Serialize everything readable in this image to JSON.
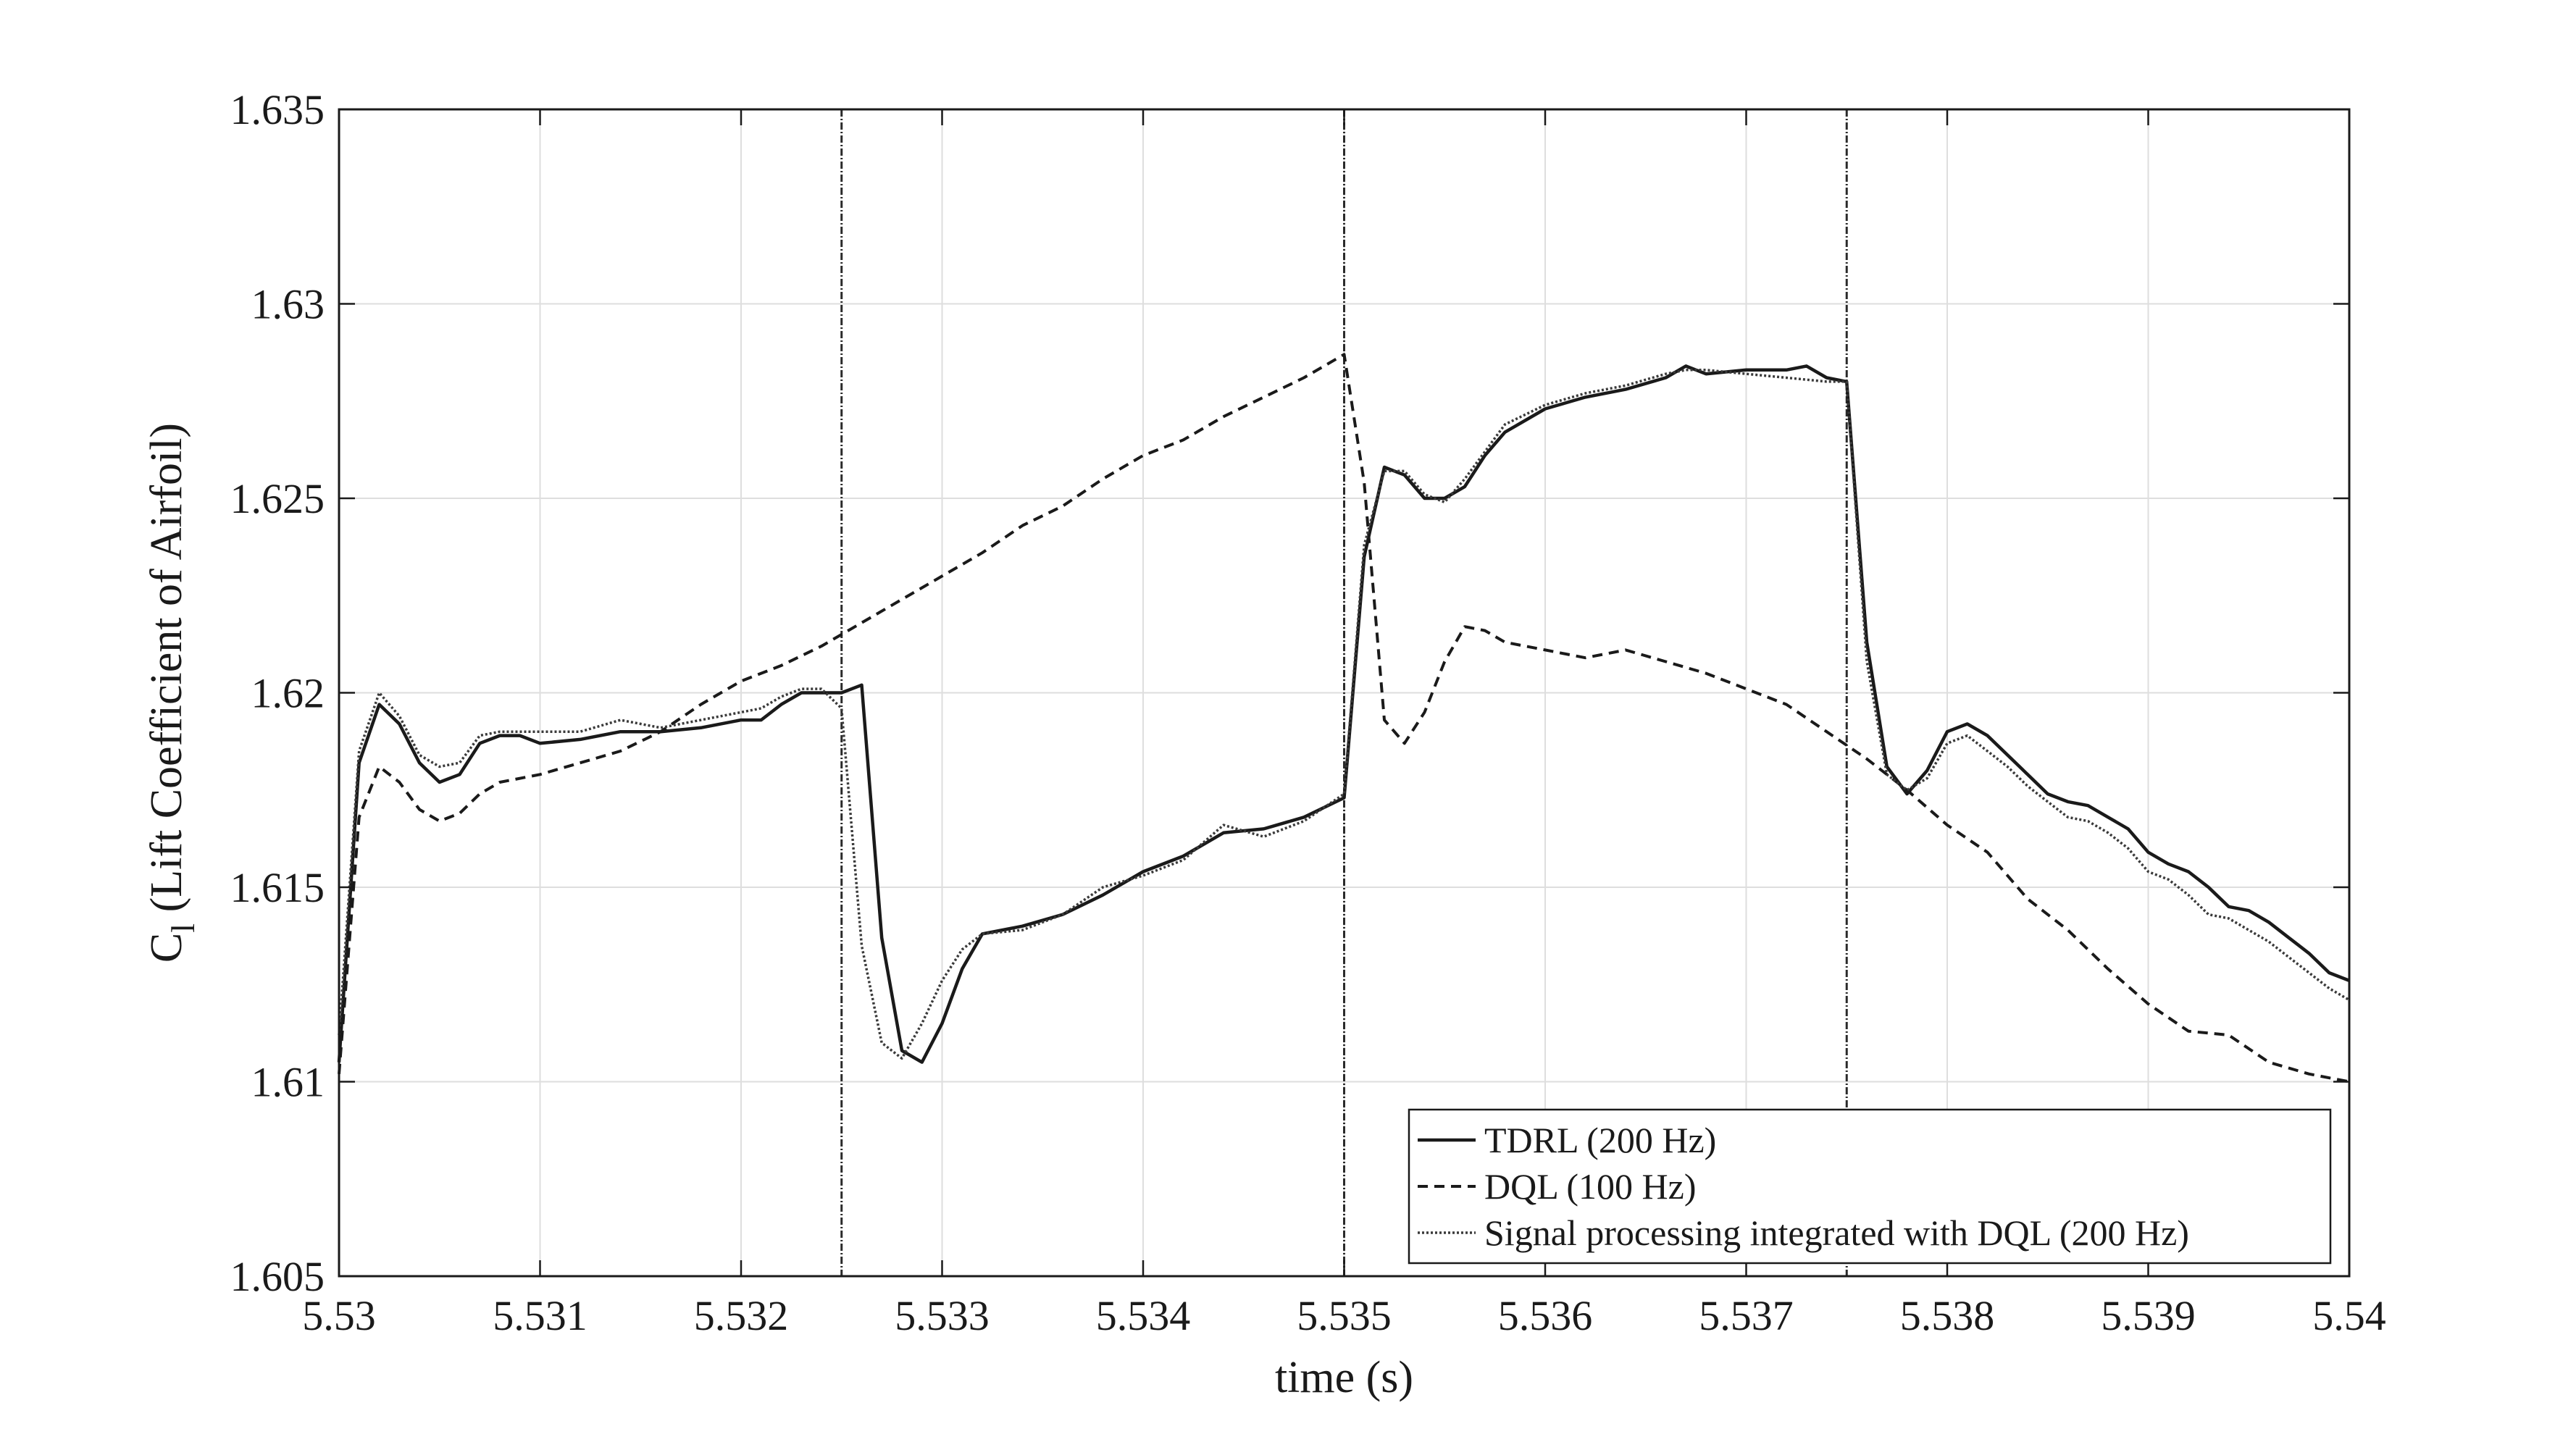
{
  "chart_data": {
    "type": "line",
    "title": "",
    "xlabel": "time (s)",
    "ylabel_main": "C",
    "ylabel_sub": "l",
    "ylabel_rest": " (Lift Coefficient of Airfoil)",
    "xlim": [
      5.53,
      5.54
    ],
    "ylim": [
      1.605,
      1.635
    ],
    "xticks": [
      5.53,
      5.531,
      5.532,
      5.533,
      5.534,
      5.535,
      5.536,
      5.537,
      5.538,
      5.539,
      5.54
    ],
    "xtick_labels": [
      "5.53",
      "5.531",
      "5.532",
      "5.533",
      "5.534",
      "5.535",
      "5.536",
      "5.537",
      "5.538",
      "5.539",
      "5.54"
    ],
    "yticks": [
      1.605,
      1.61,
      1.615,
      1.62,
      1.625,
      1.63,
      1.635
    ],
    "ytick_labels": [
      "1.605",
      "1.61",
      "1.615",
      "1.62",
      "1.625",
      "1.63",
      "1.635"
    ],
    "grid": true,
    "legend_position": "bottom-right",
    "vlines": [
      5.5325,
      5.535,
      5.5375
    ],
    "series": [
      {
        "name": "TDRL (200 Hz)",
        "style": "solid",
        "color": "#1a1a1a",
        "points": [
          [
            5.53,
            1.6105
          ],
          [
            5.5301,
            1.6182
          ],
          [
            5.5302,
            1.6197
          ],
          [
            5.5303,
            1.6192
          ],
          [
            5.5304,
            1.6182
          ],
          [
            5.5305,
            1.6177
          ],
          [
            5.5306,
            1.6179
          ],
          [
            5.5307,
            1.6187
          ],
          [
            5.5308,
            1.6189
          ],
          [
            5.5309,
            1.6189
          ],
          [
            5.531,
            1.6187
          ],
          [
            5.5312,
            1.6188
          ],
          [
            5.5314,
            1.619
          ],
          [
            5.5316,
            1.619
          ],
          [
            5.5318,
            1.6191
          ],
          [
            5.532,
            1.6193
          ],
          [
            5.5321,
            1.6193
          ],
          [
            5.5322,
            1.6197
          ],
          [
            5.5323,
            1.62
          ],
          [
            5.5324,
            1.62
          ],
          [
            5.5325,
            1.62
          ],
          [
            5.5326,
            1.6202
          ],
          [
            5.5327,
            1.6137
          ],
          [
            5.5328,
            1.6108
          ],
          [
            5.5329,
            1.6105
          ],
          [
            5.533,
            1.6115
          ],
          [
            5.5331,
            1.6129
          ],
          [
            5.5332,
            1.6138
          ],
          [
            5.5334,
            1.614
          ],
          [
            5.5336,
            1.6143
          ],
          [
            5.5338,
            1.6148
          ],
          [
            5.534,
            1.6154
          ],
          [
            5.5342,
            1.6158
          ],
          [
            5.5344,
            1.6164
          ],
          [
            5.5346,
            1.6165
          ],
          [
            5.5348,
            1.6168
          ],
          [
            5.535,
            1.6173
          ],
          [
            5.5351,
            1.6235
          ],
          [
            5.5352,
            1.6258
          ],
          [
            5.5353,
            1.6256
          ],
          [
            5.5354,
            1.625
          ],
          [
            5.5355,
            1.625
          ],
          [
            5.5356,
            1.6253
          ],
          [
            5.5357,
            1.6261
          ],
          [
            5.5358,
            1.6267
          ],
          [
            5.536,
            1.6273
          ],
          [
            5.5362,
            1.6276
          ],
          [
            5.5364,
            1.6278
          ],
          [
            5.5366,
            1.6281
          ],
          [
            5.5367,
            1.6284
          ],
          [
            5.5368,
            1.6282
          ],
          [
            5.537,
            1.6283
          ],
          [
            5.5372,
            1.6283
          ],
          [
            5.5373,
            1.6284
          ],
          [
            5.5374,
            1.6281
          ],
          [
            5.5375,
            1.628
          ],
          [
            5.5376,
            1.6213
          ],
          [
            5.5377,
            1.6181
          ],
          [
            5.5378,
            1.6174
          ],
          [
            5.5379,
            1.618
          ],
          [
            5.538,
            1.619
          ],
          [
            5.5381,
            1.6192
          ],
          [
            5.5382,
            1.6189
          ],
          [
            5.5383,
            1.6184
          ],
          [
            5.5384,
            1.6179
          ],
          [
            5.5385,
            1.6174
          ],
          [
            5.5386,
            1.6172
          ],
          [
            5.5387,
            1.6171
          ],
          [
            5.5388,
            1.6168
          ],
          [
            5.5389,
            1.6165
          ],
          [
            5.539,
            1.6159
          ],
          [
            5.5391,
            1.6156
          ],
          [
            5.5392,
            1.6154
          ],
          [
            5.5393,
            1.615
          ],
          [
            5.5394,
            1.6145
          ],
          [
            5.5395,
            1.6144
          ],
          [
            5.5396,
            1.6141
          ],
          [
            5.5397,
            1.6137
          ],
          [
            5.5398,
            1.6133
          ],
          [
            5.5399,
            1.6128
          ],
          [
            5.54,
            1.6126
          ]
        ]
      },
      {
        "name": "DQL (100 Hz)",
        "style": "dashed",
        "color": "#1a1a1a",
        "points": [
          [
            5.53,
            1.6102
          ],
          [
            5.5301,
            1.6168
          ],
          [
            5.5302,
            1.6181
          ],
          [
            5.5303,
            1.6177
          ],
          [
            5.5304,
            1.617
          ],
          [
            5.5305,
            1.6167
          ],
          [
            5.5306,
            1.6169
          ],
          [
            5.5307,
            1.6174
          ],
          [
            5.5308,
            1.6177
          ],
          [
            5.531,
            1.6179
          ],
          [
            5.5312,
            1.6182
          ],
          [
            5.5314,
            1.6185
          ],
          [
            5.5316,
            1.619
          ],
          [
            5.5318,
            1.6197
          ],
          [
            5.532,
            1.6203
          ],
          [
            5.5322,
            1.6207
          ],
          [
            5.5324,
            1.6212
          ],
          [
            5.5326,
            1.6218
          ],
          [
            5.5328,
            1.6224
          ],
          [
            5.533,
            1.623
          ],
          [
            5.5332,
            1.6236
          ],
          [
            5.5334,
            1.6243
          ],
          [
            5.5336,
            1.6248
          ],
          [
            5.5338,
            1.6255
          ],
          [
            5.534,
            1.6261
          ],
          [
            5.5342,
            1.6265
          ],
          [
            5.5344,
            1.6271
          ],
          [
            5.5346,
            1.6276
          ],
          [
            5.5348,
            1.6281
          ],
          [
            5.535,
            1.6287
          ],
          [
            5.5351,
            1.6254
          ],
          [
            5.5352,
            1.6193
          ],
          [
            5.5353,
            1.6187
          ],
          [
            5.5354,
            1.6195
          ],
          [
            5.5355,
            1.6208
          ],
          [
            5.5356,
            1.6217
          ],
          [
            5.5357,
            1.6216
          ],
          [
            5.5358,
            1.6213
          ],
          [
            5.536,
            1.6211
          ],
          [
            5.5362,
            1.6209
          ],
          [
            5.5364,
            1.6211
          ],
          [
            5.5366,
            1.6208
          ],
          [
            5.5368,
            1.6205
          ],
          [
            5.537,
            1.6201
          ],
          [
            5.5372,
            1.6197
          ],
          [
            5.5374,
            1.619
          ],
          [
            5.5376,
            1.6183
          ],
          [
            5.5378,
            1.6175
          ],
          [
            5.538,
            1.6166
          ],
          [
            5.5382,
            1.6159
          ],
          [
            5.5384,
            1.6147
          ],
          [
            5.5386,
            1.6139
          ],
          [
            5.5388,
            1.6129
          ],
          [
            5.539,
            1.612
          ],
          [
            5.5392,
            1.6113
          ],
          [
            5.5394,
            1.6112
          ],
          [
            5.5396,
            1.6105
          ],
          [
            5.5398,
            1.6102
          ],
          [
            5.54,
            1.61
          ]
        ]
      },
      {
        "name": "Signal processing integrated with DQL (200 Hz)",
        "style": "dotted",
        "color": "#3a3a3a",
        "points": [
          [
            5.53,
            1.6112
          ],
          [
            5.5301,
            1.6185
          ],
          [
            5.5302,
            1.62
          ],
          [
            5.5303,
            1.6194
          ],
          [
            5.5304,
            1.6184
          ],
          [
            5.5305,
            1.6181
          ],
          [
            5.5306,
            1.6182
          ],
          [
            5.5307,
            1.6189
          ],
          [
            5.5308,
            1.619
          ],
          [
            5.5309,
            1.619
          ],
          [
            5.531,
            1.619
          ],
          [
            5.5312,
            1.619
          ],
          [
            5.5314,
            1.6193
          ],
          [
            5.5316,
            1.6191
          ],
          [
            5.5318,
            1.6193
          ],
          [
            5.532,
            1.6195
          ],
          [
            5.5321,
            1.6196
          ],
          [
            5.5322,
            1.6199
          ],
          [
            5.5323,
            1.6201
          ],
          [
            5.5324,
            1.6201
          ],
          [
            5.5325,
            1.6196
          ],
          [
            5.5326,
            1.6135
          ],
          [
            5.5327,
            1.611
          ],
          [
            5.5328,
            1.6106
          ],
          [
            5.5329,
            1.6115
          ],
          [
            5.533,
            1.6126
          ],
          [
            5.5331,
            1.6134
          ],
          [
            5.5332,
            1.6138
          ],
          [
            5.5334,
            1.6139
          ],
          [
            5.5336,
            1.6143
          ],
          [
            5.5338,
            1.615
          ],
          [
            5.534,
            1.6153
          ],
          [
            5.5342,
            1.6157
          ],
          [
            5.5344,
            1.6166
          ],
          [
            5.5346,
            1.6163
          ],
          [
            5.5348,
            1.6167
          ],
          [
            5.535,
            1.6174
          ],
          [
            5.5351,
            1.6238
          ],
          [
            5.5352,
            1.6257
          ],
          [
            5.5353,
            1.6257
          ],
          [
            5.5354,
            1.6251
          ],
          [
            5.5355,
            1.6249
          ],
          [
            5.5356,
            1.6255
          ],
          [
            5.5357,
            1.6262
          ],
          [
            5.5358,
            1.6269
          ],
          [
            5.536,
            1.6274
          ],
          [
            5.5362,
            1.6277
          ],
          [
            5.5364,
            1.6279
          ],
          [
            5.5366,
            1.6282
          ],
          [
            5.5367,
            1.6283
          ],
          [
            5.5368,
            1.6283
          ],
          [
            5.537,
            1.6282
          ],
          [
            5.5372,
            1.6281
          ],
          [
            5.5374,
            1.628
          ],
          [
            5.5375,
            1.628
          ],
          [
            5.5376,
            1.6208
          ],
          [
            5.5377,
            1.6179
          ],
          [
            5.5378,
            1.6175
          ],
          [
            5.5379,
            1.6178
          ],
          [
            5.538,
            1.6187
          ],
          [
            5.5381,
            1.6189
          ],
          [
            5.5382,
            1.6185
          ],
          [
            5.5383,
            1.6181
          ],
          [
            5.5384,
            1.6176
          ],
          [
            5.5385,
            1.6172
          ],
          [
            5.5386,
            1.6168
          ],
          [
            5.5387,
            1.6167
          ],
          [
            5.5388,
            1.6164
          ],
          [
            5.5389,
            1.616
          ],
          [
            5.539,
            1.6154
          ],
          [
            5.5391,
            1.6152
          ],
          [
            5.5392,
            1.6148
          ],
          [
            5.5393,
            1.6143
          ],
          [
            5.5394,
            1.6142
          ],
          [
            5.5395,
            1.6139
          ],
          [
            5.5396,
            1.6136
          ],
          [
            5.5397,
            1.6132
          ],
          [
            5.5398,
            1.6128
          ],
          [
            5.5399,
            1.6124
          ],
          [
            5.54,
            1.6121
          ]
        ]
      }
    ]
  }
}
